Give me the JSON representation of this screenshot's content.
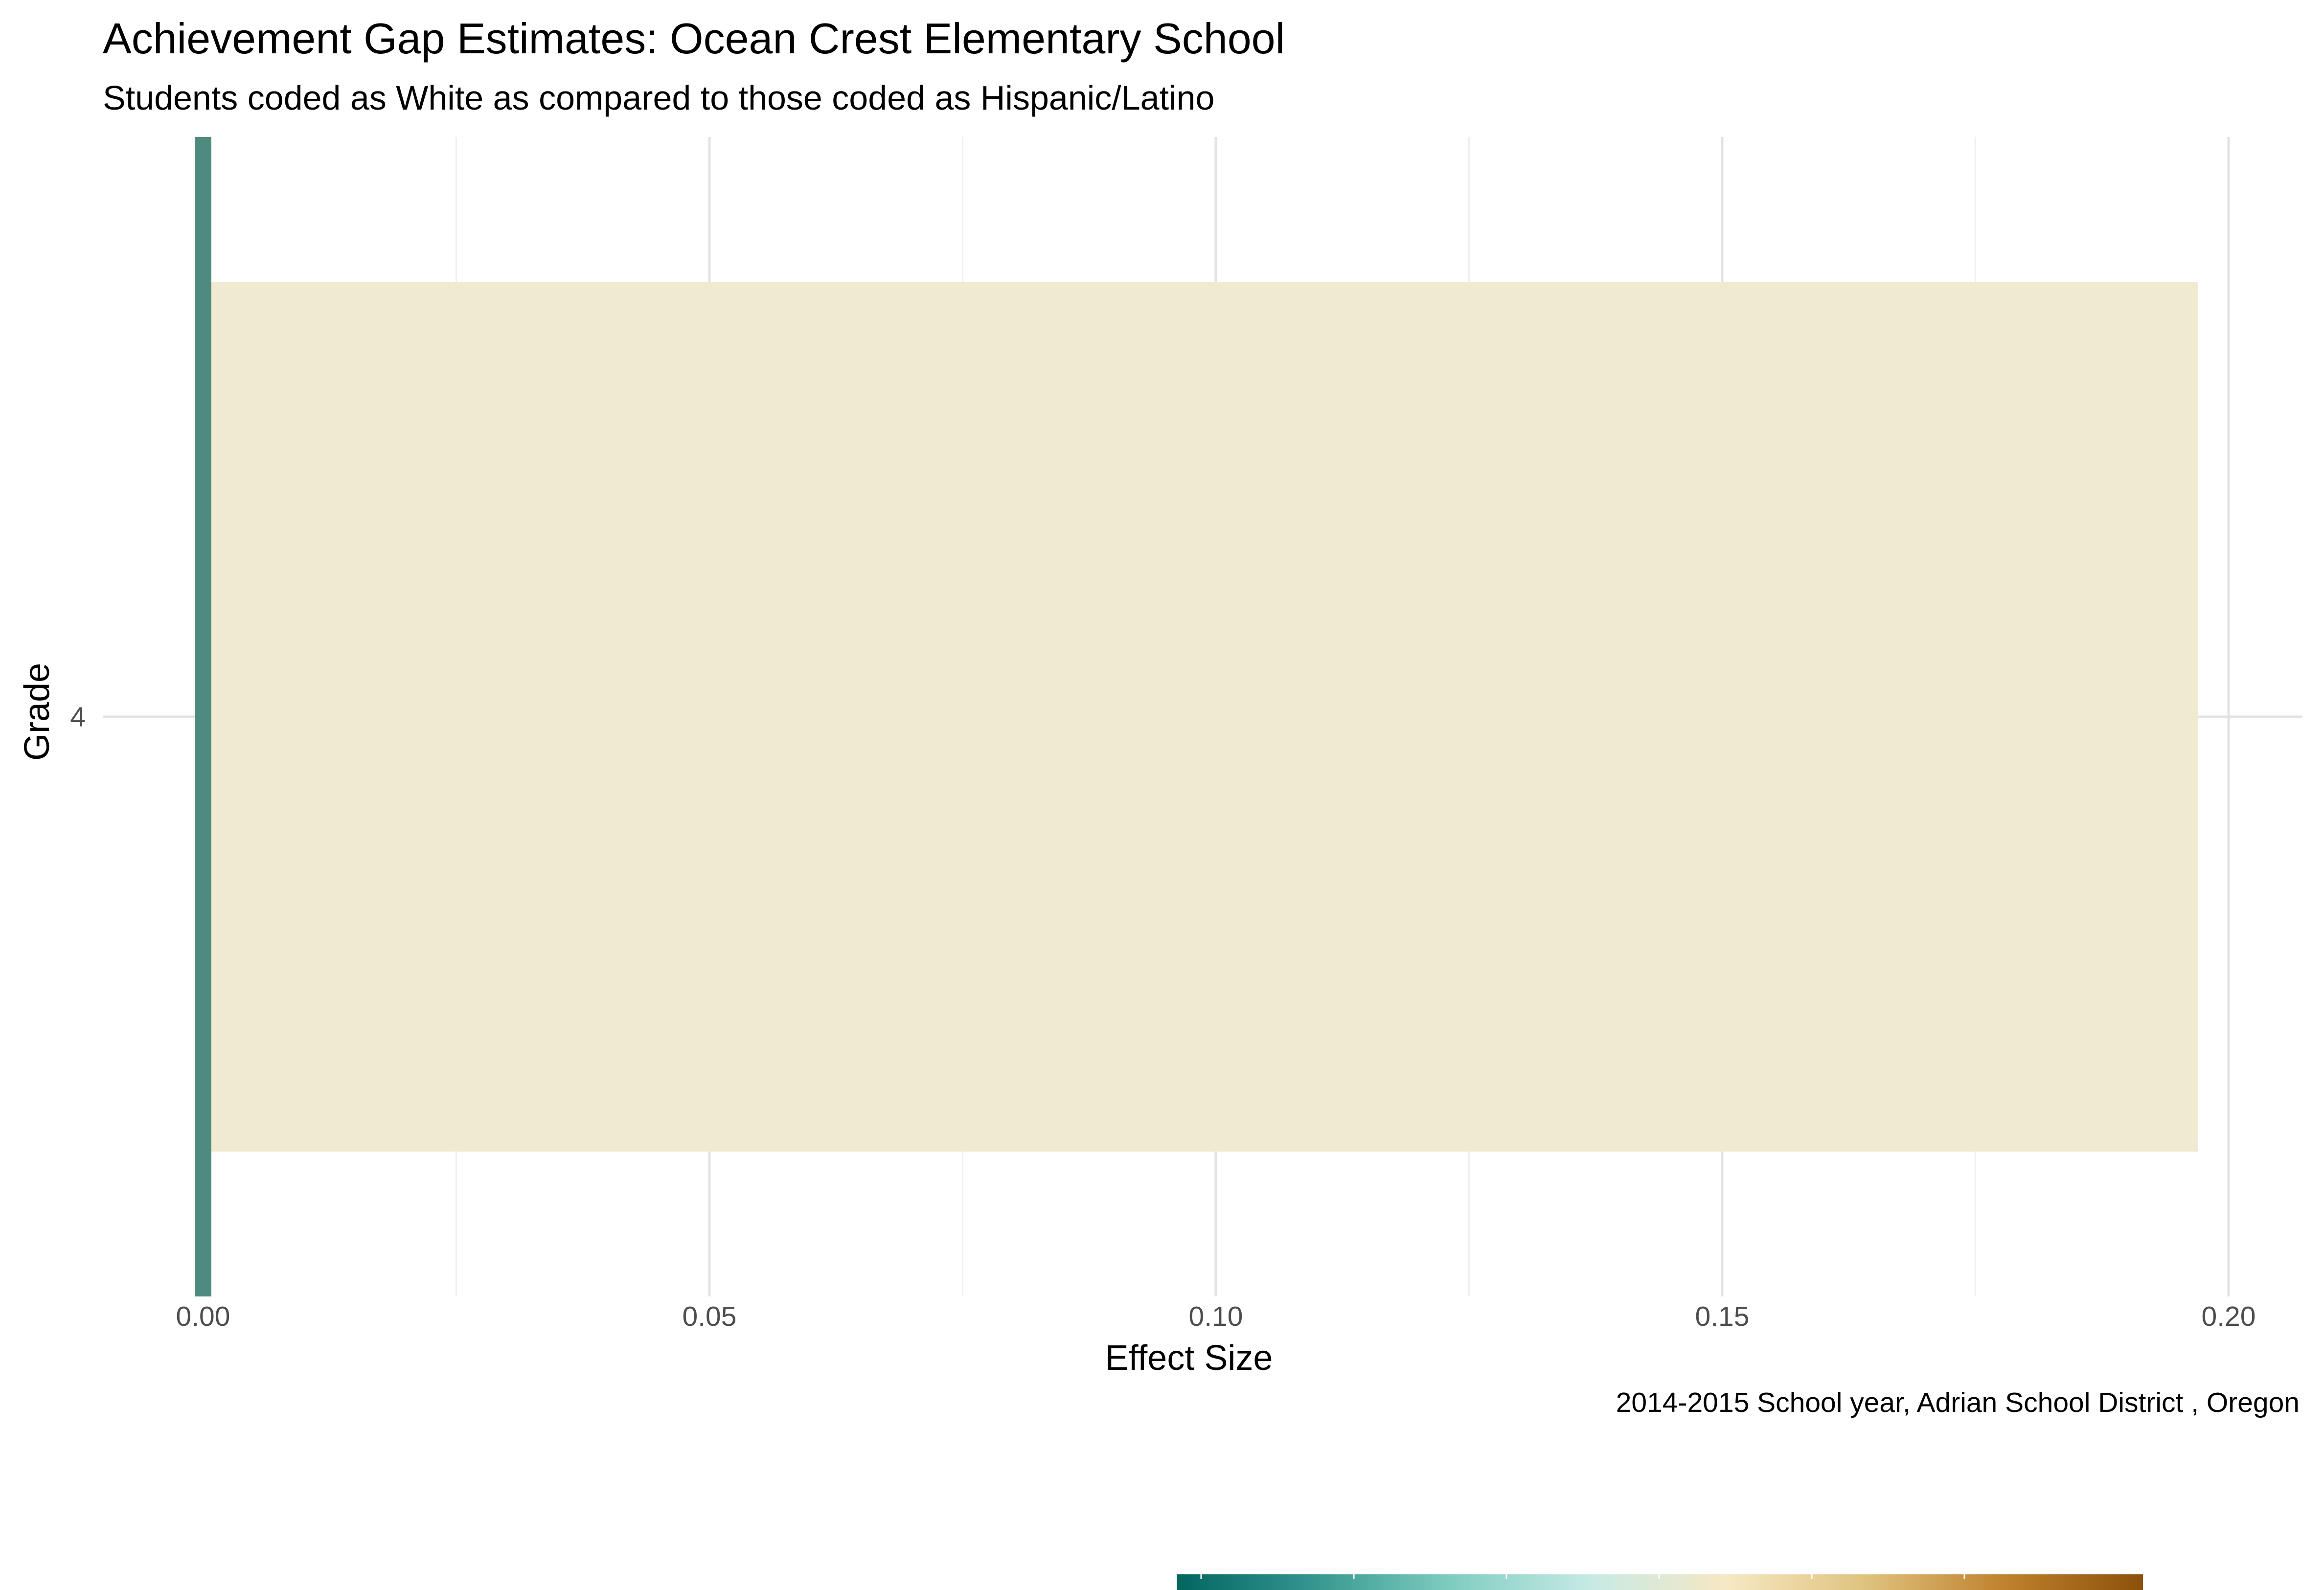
{
  "chart_data": {
    "type": "bar",
    "orientation": "horizontal",
    "title": "Achievement Gap Estimates: Ocean Crest Elementary School",
    "subtitle": "Students coded as White as compared to those coded as Hispanic/Latino",
    "caption": "2014-2015 School year,  Adrian School District , Oregon",
    "xlabel": "Effect Size",
    "ylabel": "Grade",
    "xlim": [
      0,
      0.205
    ],
    "x_ticks": [
      "0.00",
      "0.05",
      "0.10",
      "0.15",
      "0.20"
    ],
    "categories": [
      "4"
    ],
    "values": [
      0.197
    ],
    "grid": true,
    "zero_line_color": "#4f8a7e",
    "bar_color": "#f0ead2",
    "color_scale": {
      "type": "diverging",
      "stops": [
        "#01665e",
        "#35978f",
        "#80cdc1",
        "#c7eae5",
        "#f6e8c3",
        "#dfc27d",
        "#bf812d",
        "#8c510a"
      ],
      "legend_placement": "bottom"
    }
  }
}
